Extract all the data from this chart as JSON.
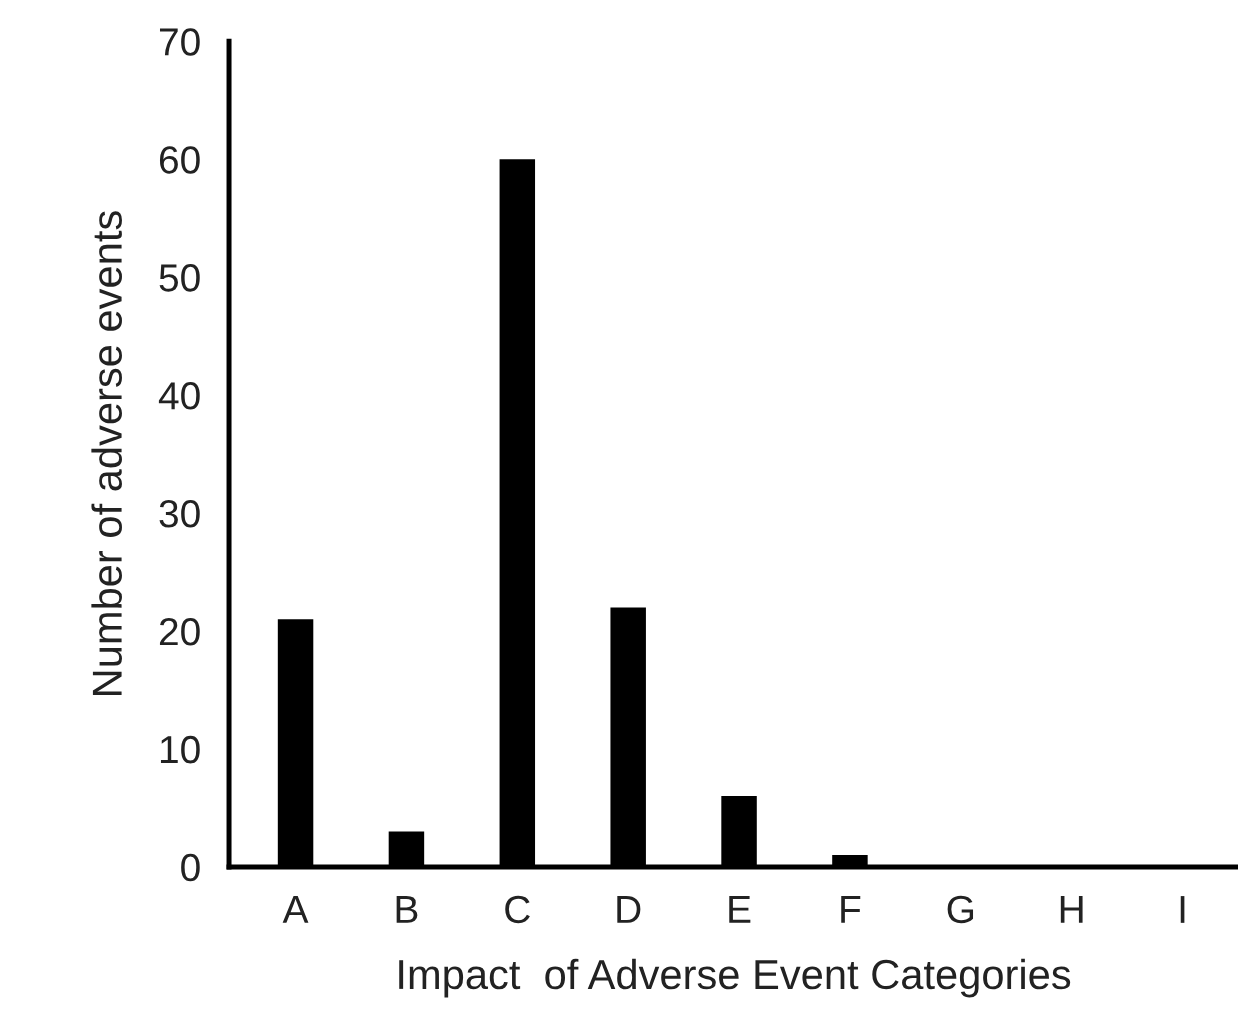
{
  "chart_data": {
    "type": "bar",
    "xlabel": "Impact  of Adverse Event Categories",
    "ylabel": "Number of adverse events",
    "categories": [
      "A",
      "B",
      "C",
      "D",
      "E",
      "F",
      "G",
      "H",
      "I"
    ],
    "values": [
      21,
      3,
      60,
      22,
      6,
      1,
      0,
      0,
      0
    ],
    "color": "#000000",
    "ylim": [
      0,
      70
    ],
    "yticks": [
      0,
      10,
      20,
      30,
      40,
      50,
      60,
      70
    ],
    "grid": false
  }
}
